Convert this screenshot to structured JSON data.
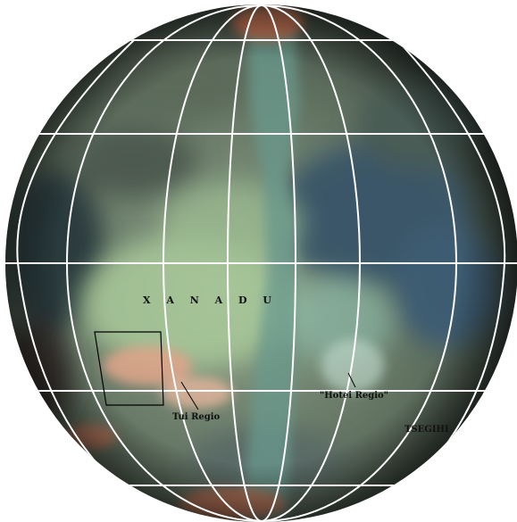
{
  "map": {
    "labels": {
      "xanadu": "X A N A D U",
      "tui_regio": "Tui Regio",
      "hotei_regio": "\"Hotei Regio\"",
      "tsegihi": "TSEGIHI"
    },
    "colors": {
      "grid_lines": "#ffffff",
      "label_text": "#111111",
      "highlight_box": "#000000",
      "xanadu_bright": "#a9c99a",
      "dune_dark": "#3f5560",
      "orange_regions": "#d48a6a"
    }
  }
}
